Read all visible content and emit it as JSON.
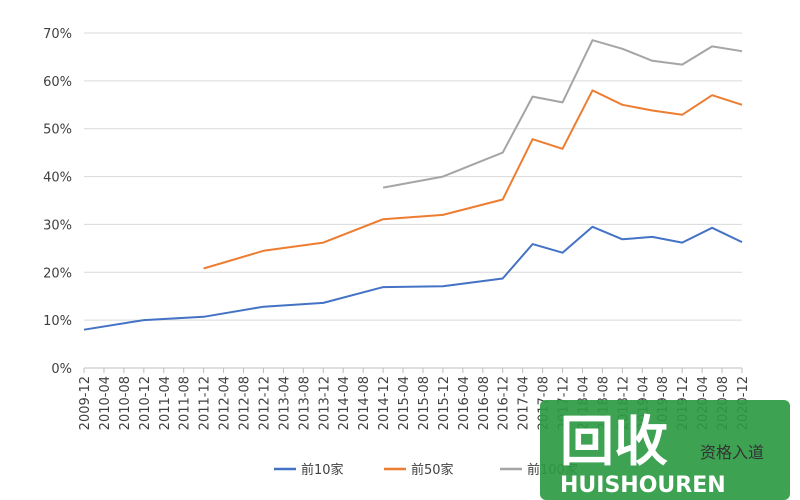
{
  "chart_data": {
    "type": "line",
    "y_axis": {
      "ticks": [
        "0%",
        "10%",
        "20%",
        "30%",
        "40%",
        "50%",
        "60%",
        "70%"
      ],
      "ylim": [
        0,
        70
      ],
      "unit": "%"
    },
    "x_ticks": [
      "2009-12",
      "2010-04",
      "2010-08",
      "2010-12",
      "2011-04",
      "2011-08",
      "2011-12",
      "2012-04",
      "2012-08",
      "2012-12",
      "2013-04",
      "2013-08",
      "2013-12",
      "2014-04",
      "2014-08",
      "2014-12",
      "2015-04",
      "2015-08",
      "2015-12",
      "2016-04",
      "2016-08",
      "2016-12",
      "2017-04",
      "2017-08",
      "2017-12",
      "2018-04",
      "2018-08",
      "2018-12",
      "2019-04",
      "2019-08",
      "2019-12",
      "2020-04",
      "2020-08",
      "2020-12"
    ],
    "grid": true,
    "legend_position": "bottom",
    "series": [
      {
        "name": "前10家",
        "color": "#4472C4",
        "points": [
          [
            "2009-12",
            8.0
          ],
          [
            "2010-12",
            10.0
          ],
          [
            "2011-12",
            10.7
          ],
          [
            "2012-12",
            12.8
          ],
          [
            "2013-12",
            13.6
          ],
          [
            "2014-12",
            16.9
          ],
          [
            "2015-12",
            17.1
          ],
          [
            "2016-12",
            18.7
          ],
          [
            "2017-06",
            25.9
          ],
          [
            "2017-12",
            24.1
          ],
          [
            "2018-06",
            29.5
          ],
          [
            "2018-12",
            26.9
          ],
          [
            "2019-06",
            27.4
          ],
          [
            "2019-12",
            26.2
          ],
          [
            "2020-06",
            29.3
          ],
          [
            "2020-12",
            26.3
          ]
        ]
      },
      {
        "name": "前50家",
        "color": "#ED7D31",
        "points": [
          [
            "2011-12",
            20.8
          ],
          [
            "2012-12",
            24.5
          ],
          [
            "2013-12",
            26.2
          ],
          [
            "2014-12",
            31.1
          ],
          [
            "2015-12",
            32.0
          ],
          [
            "2016-12",
            35.2
          ],
          [
            "2017-06",
            47.8
          ],
          [
            "2017-12",
            45.8
          ],
          [
            "2018-06",
            58.0
          ],
          [
            "2018-12",
            55.0
          ],
          [
            "2019-06",
            53.8
          ],
          [
            "2019-12",
            52.9
          ],
          [
            "2020-06",
            57.0
          ],
          [
            "2020-12",
            55.0
          ]
        ]
      },
      {
        "name": "前100家",
        "color": "#A5A5A5",
        "points": [
          [
            "2014-12",
            37.7
          ],
          [
            "2015-12",
            40.0
          ],
          [
            "2016-12",
            45.0
          ],
          [
            "2017-06",
            56.7
          ],
          [
            "2017-12",
            55.5
          ],
          [
            "2018-06",
            68.5
          ],
          [
            "2018-12",
            66.7
          ],
          [
            "2019-06",
            64.2
          ],
          [
            "2019-12",
            63.4
          ],
          [
            "2020-06",
            67.2
          ],
          [
            "2020-12",
            66.2
          ]
        ]
      }
    ]
  },
  "watermark": {
    "logo_text": "回收",
    "brand_text": "HUISHOUREN",
    "badge_text": "资格入道"
  }
}
